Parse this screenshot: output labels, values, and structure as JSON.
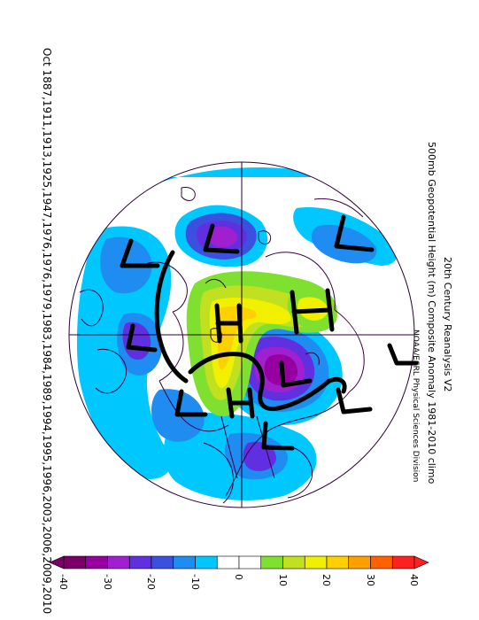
{
  "title": {
    "line1": "20th Century Reanalysis V2",
    "line2": "500mb Geopotential Height (m) Composite Anomaly 1981-2010 climo",
    "credit": "NOAA/ESRL Physical Sciences Division"
  },
  "dates": "Oct 1887,1911,1913,1925,1947,1976,1976,1979,1983,1984,1989,1994,1995,1996,2003,2006,2009,2010",
  "colorbar": {
    "labels": [
      "-40",
      "-30",
      "-20",
      "-10",
      "0",
      "10",
      "20",
      "30",
      "40"
    ],
    "colors": [
      "#7a0068",
      "#9600a0",
      "#a020d0",
      "#6030e0",
      "#3c50e0",
      "#1e8cf0",
      "#00c8ff",
      "#ffffff",
      "#ffffff",
      "#80e030",
      "#c0e020",
      "#f0f000",
      "#ffd000",
      "#ffa000",
      "#ff6000",
      "#ff2020"
    ]
  },
  "annotations": {
    "letters": [
      "L",
      "L",
      "L",
      "L",
      "L",
      "L",
      "L",
      "L",
      "H",
      "H",
      "H"
    ]
  }
}
